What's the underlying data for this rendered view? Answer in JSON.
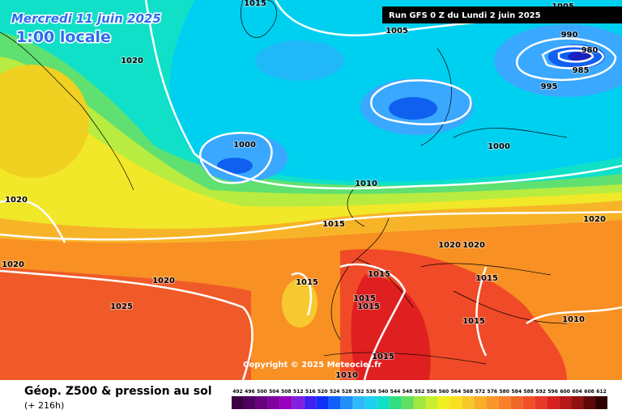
{
  "header": {
    "date": "Mercredi 11 juin 2025",
    "time": "1:00 locale",
    "run": "Run GFS 0 Z du Lundi 2 juin 2025"
  },
  "isobars": [
    "1015",
    "1005",
    "1005",
    "990",
    "980",
    "985",
    "995",
    "1020",
    "1000",
    "1000",
    "1010",
    "1015",
    "1020",
    "1020",
    "1020",
    "1020",
    "1020",
    "1020",
    "1015",
    "1015",
    "1015",
    "1025",
    "1015",
    "1015",
    "1015",
    "1010",
    "1015",
    "1010"
  ],
  "copyright": "Copyright © 2025 Meteociel.fr",
  "legend": {
    "title": "Géop. Z500 & pression au sol",
    "lead": "(+ 216h)",
    "ticks": [
      "492",
      "496",
      "500",
      "504",
      "508",
      "512",
      "516",
      "520",
      "524",
      "528",
      "532",
      "536",
      "540",
      "544",
      "548",
      "552",
      "556",
      "560",
      "564",
      "568",
      "572",
      "576",
      "580",
      "584",
      "588",
      "592",
      "596",
      "600",
      "604",
      "608",
      "612"
    ]
  }
}
